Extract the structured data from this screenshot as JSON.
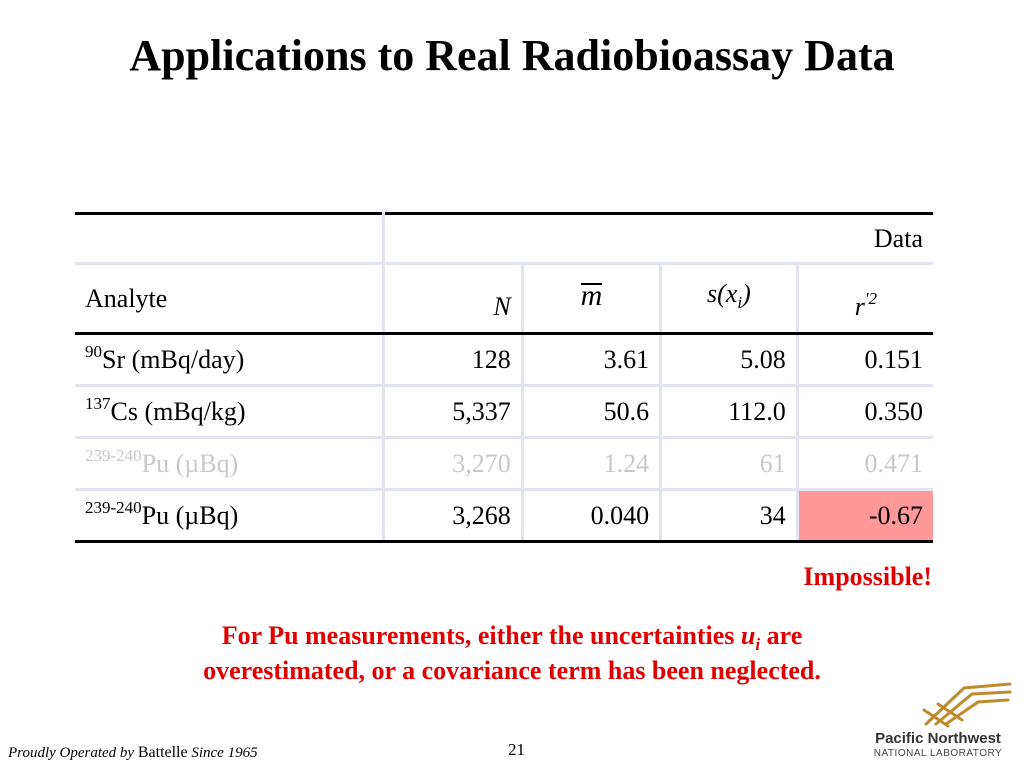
{
  "slide": {
    "title": "Applications to Real Radiobioassay Data"
  },
  "table": {
    "group_header": "Data",
    "analyte_header": "Analyte",
    "col_n": "N",
    "col_m": "m",
    "col_s": "s(x",
    "col_s_sub": "i",
    "col_s_close": ")",
    "col_r": "r",
    "col_r_sup": "'2",
    "rows": [
      {
        "isotope": "90",
        "name": "Sr (mBq/day)",
        "n": "128",
        "m": "3.61",
        "s": "5.08",
        "r": "0.151"
      },
      {
        "isotope": "137",
        "name": "Cs (mBq/kg)",
        "n": "5,337",
        "m": "50.6",
        "s": "112.0",
        "r": "0.350"
      },
      {
        "isotope": "239-240",
        "name": "Pu (µBq)",
        "n": "3,270",
        "m": "1.24",
        "s": "61",
        "r": "0.471"
      },
      {
        "isotope": "239-240",
        "name": "Pu (µBq)",
        "n": "3,268",
        "m": "0.040",
        "s": "34",
        "r": "-0.67"
      }
    ]
  },
  "callout": "Impossible!",
  "note": {
    "prefix": "For Pu measurements, either the uncertainties ",
    "u": "u",
    "u_sub": "i",
    "middle": " are",
    "line2": "overestimated, or a covariance term has been neglected."
  },
  "footer": {
    "operated_a": "Proudly Operated by ",
    "operated_brand": "Battelle",
    "operated_b": " Since 1965",
    "page": "21"
  },
  "logo": {
    "name": "Pacific Northwest",
    "sub": "NATIONAL LABORATORY"
  },
  "colors": {
    "accent_red": "#e00000",
    "highlight": "#ff9999",
    "faded_text": "#c9c9c9",
    "logo_orange": "#c08a2e"
  }
}
